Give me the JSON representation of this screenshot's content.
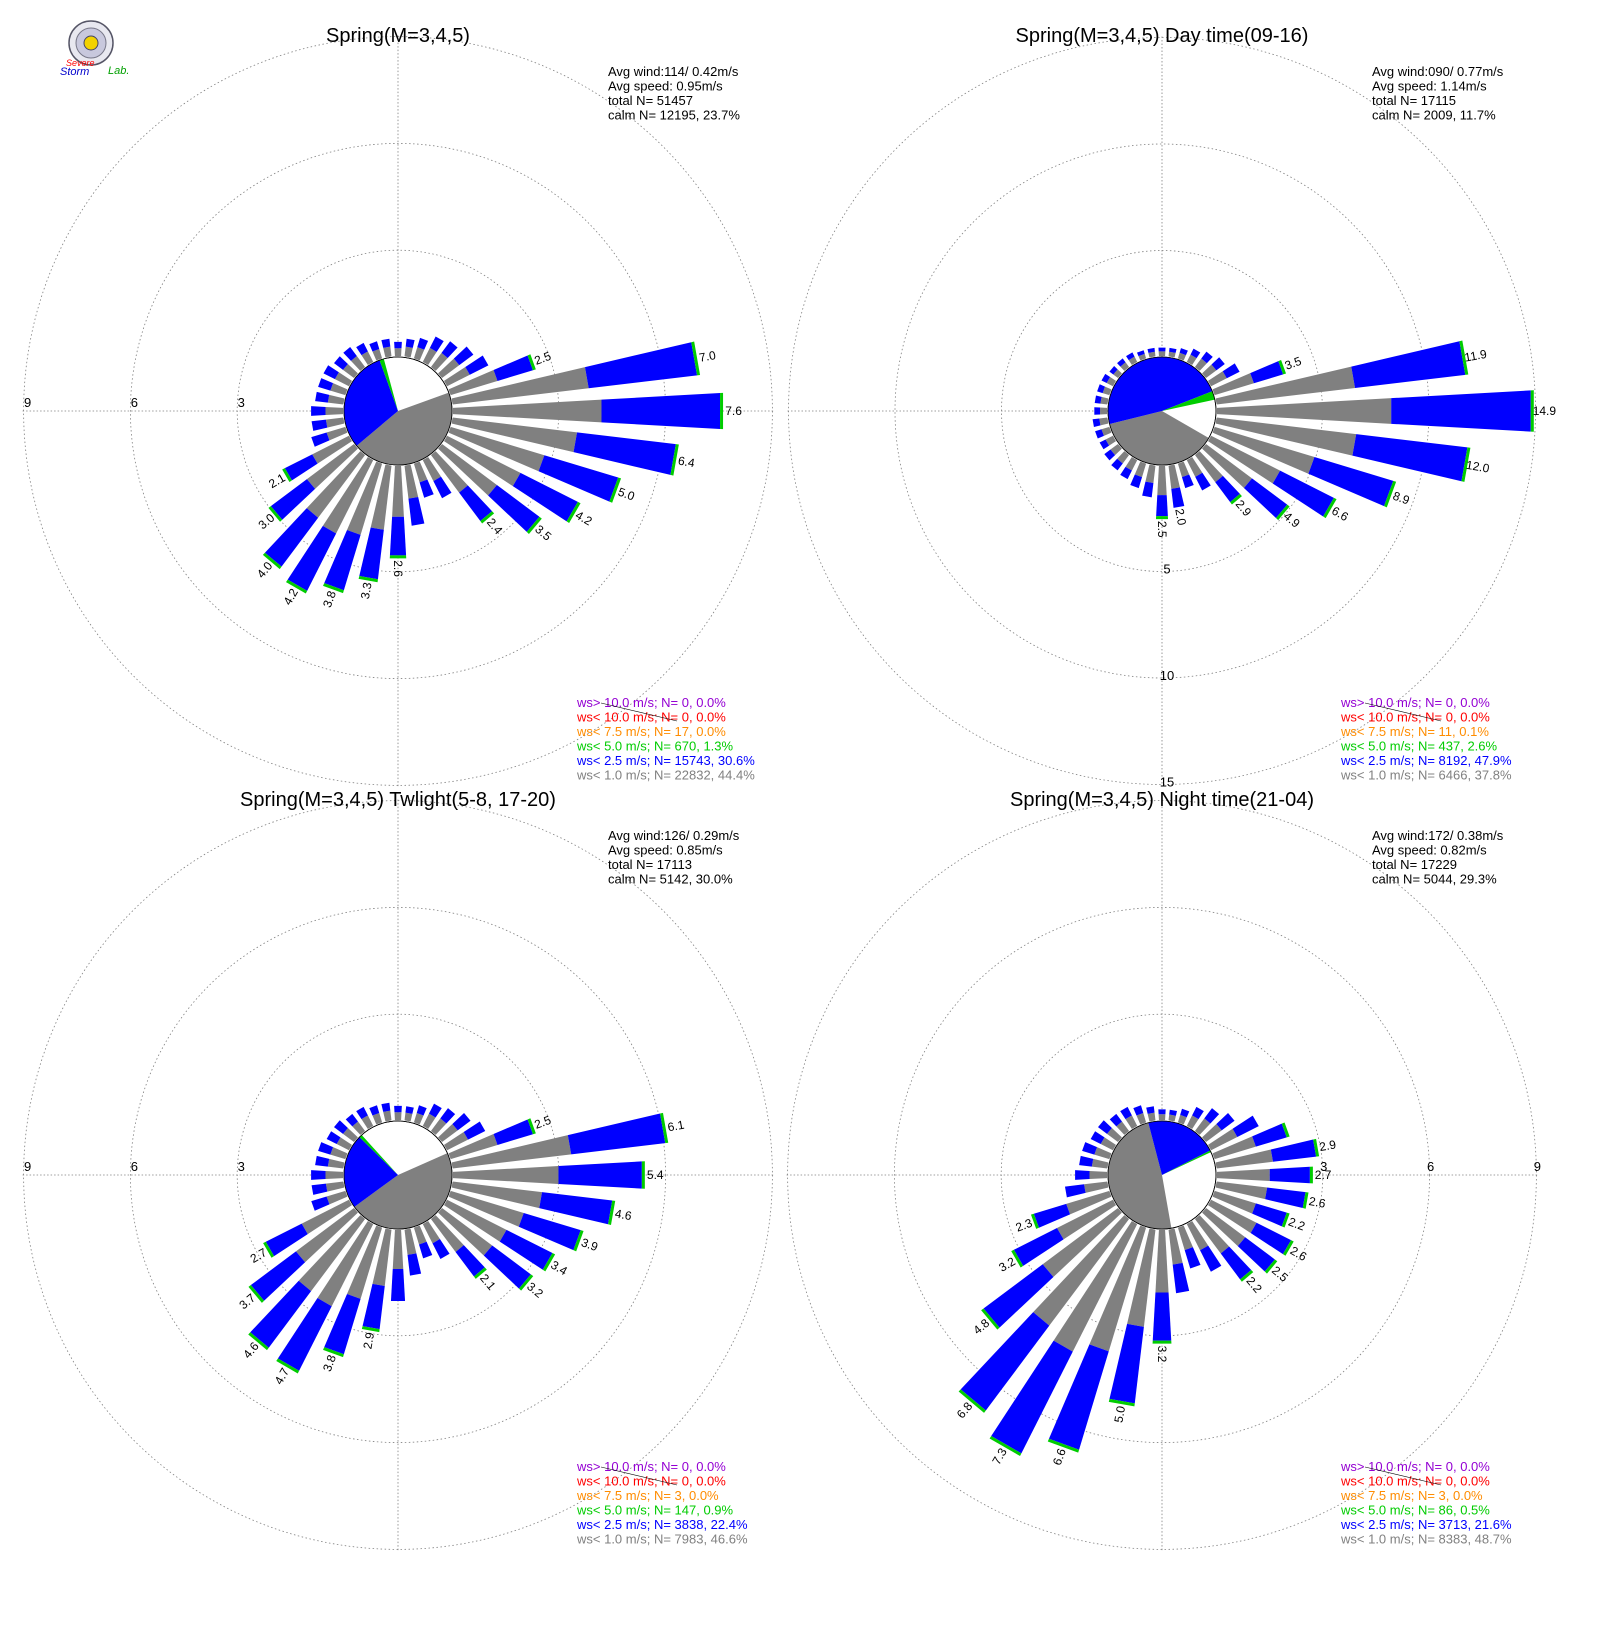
{
  "logo": {
    "text1": "Severe",
    "text2": "Storm",
    "text3": "Lab."
  },
  "colors": {
    "calm": "#808080",
    "ws1": "#808080",
    "ws2": "#0000ff",
    "ws3": "#00cc00",
    "ws4": "#ff8c00",
    "ws5": "#ff0000",
    "ws6": "#9400d3",
    "text": "#000000",
    "grid": "#808080"
  },
  "chart_data": [
    {
      "type": "wind-rose",
      "title": "Spring(M=3,4,5)",
      "stats": [
        "Avg wind:114/ 0.42m/s",
        "Avg speed: 0.95m/s",
        "total N=      51457",
        "calm N=  12195,  23.7%"
      ],
      "ring_labels": [
        "3",
        "6",
        "9"
      ],
      "sectors": 36,
      "totals": [
        0.5,
        0.6,
        0.8,
        0.9,
        1.1,
        1.3,
        2.5,
        7.0,
        7.6,
        6.4,
        5.0,
        4.2,
        3.5,
        2.4,
        1.2,
        1.0,
        1.7,
        2.6,
        3.3,
        3.8,
        4.2,
        4.0,
        3.0,
        2.1,
        1.0,
        0.9,
        0.9,
        0.8,
        0.8,
        0.8,
        0.7,
        0.7,
        0.6,
        0.5,
        0.5,
        0.4
      ],
      "value_labels": [
        null,
        null,
        null,
        null,
        null,
        null,
        "2.5",
        "7.0",
        "7.6",
        "6.4",
        "5.0",
        "4.2",
        "3.5",
        "2.4",
        null,
        null,
        null,
        "2.6",
        "3.3",
        "3.8",
        "4.2",
        "4.0",
        "3.0",
        "2.1",
        null,
        null,
        null,
        null,
        null,
        null,
        null,
        null,
        null,
        null,
        null,
        null
      ],
      "legend": [
        {
          "label": "ws> 10.0 m/s; N=     0,  0.0%",
          "color": "#9400d3"
        },
        {
          "label": "ws< 10.0 m/s; N=     0,  0.0%",
          "color": "#ff0000"
        },
        {
          "label": "ws<  7.5 m/s; N=    17,  0.0%",
          "color": "#ff8c00"
        },
        {
          "label": "ws<  5.0 m/s; N=   670,  1.3%",
          "color": "#00cc00"
        },
        {
          "label": "ws<  2.5 m/s; N= 15743, 30.6%",
          "color": "#0000ff"
        },
        {
          "label": "ws<  1.0 m/s; N= 22832, 44.4%",
          "color": "#808080"
        }
      ],
      "calm_split": {
        "gray_pct": 44.4,
        "blue_pct": 30.6,
        "green_pct": 1.3
      }
    },
    {
      "type": "wind-rose",
      "title": "Spring(M=3,4,5) Day time(09-16)",
      "stats": [
        "Avg wind:090/ 0.77m/s",
        "Avg speed: 1.14m/s",
        "total N=      17115",
        "calm N=   2009,  11.7%"
      ],
      "ring_labels": [
        "5",
        "10",
        "15"
      ],
      "sectors": 36,
      "totals": [
        0.4,
        0.5,
        0.7,
        0.9,
        1.1,
        1.5,
        3.5,
        11.9,
        14.9,
        12.0,
        8.9,
        6.6,
        4.9,
        2.9,
        1.6,
        1.2,
        2.0,
        2.5,
        1.5,
        1.2,
        1.0,
        0.9,
        0.8,
        0.7,
        0.7,
        0.7,
        0.6,
        0.6,
        0.6,
        0.6,
        0.5,
        0.5,
        0.5,
        0.4,
        0.4,
        0.4
      ],
      "value_labels": [
        null,
        null,
        null,
        null,
        null,
        null,
        "3.5",
        "11.9",
        "14.9",
        "12.0",
        "8.9",
        "6.6",
        "4.9",
        "2.9",
        null,
        null,
        "2.0",
        "2.5",
        null,
        null,
        null,
        null,
        null,
        null,
        null,
        null,
        null,
        null,
        null,
        null,
        null,
        null,
        null,
        null,
        null,
        null
      ],
      "legend": [
        {
          "label": "ws> 10.0 m/s; N=     0,  0.0%",
          "color": "#9400d3"
        },
        {
          "label": "ws< 10.0 m/s; N=     0,  0.0%",
          "color": "#ff0000"
        },
        {
          "label": "ws<  7.5 m/s; N=    11,  0.1%",
          "color": "#ff8c00"
        },
        {
          "label": "ws<  5.0 m/s; N=   437,  2.6%",
          "color": "#00cc00"
        },
        {
          "label": "ws<  2.5 m/s; N=  8192, 47.9%",
          "color": "#0000ff"
        },
        {
          "label": "ws<  1.0 m/s; N=  6466, 37.8%",
          "color": "#808080"
        }
      ],
      "calm_split": {
        "gray_pct": 37.8,
        "blue_pct": 47.9,
        "green_pct": 2.6
      }
    },
    {
      "type": "wind-rose",
      "title": "Spring(M=3,4,5) Twlight(5-8, 17-20)",
      "stats": [
        "Avg wind:126/ 0.29m/s",
        "Avg speed: 0.85m/s",
        "total N=      17113",
        "calm N=   5142,  30.0%"
      ],
      "ring_labels": [
        "3",
        "6",
        "9"
      ],
      "sectors": 36,
      "totals": [
        0.4,
        0.5,
        0.7,
        0.8,
        1.0,
        1.2,
        2.5,
        6.1,
        5.4,
        4.6,
        3.9,
        3.4,
        3.2,
        2.1,
        1.1,
        0.9,
        1.3,
        2.0,
        2.9,
        3.8,
        4.7,
        4.6,
        3.7,
        2.7,
        1.0,
        0.9,
        0.9,
        0.8,
        0.8,
        0.7,
        0.7,
        0.6,
        0.6,
        0.5,
        0.5,
        0.4
      ],
      "value_labels": [
        null,
        null,
        null,
        null,
        null,
        null,
        "2.5",
        "6.1",
        "5.4",
        "4.6",
        "3.9",
        "3.4",
        "3.2",
        "2.1",
        null,
        null,
        null,
        null,
        "2.9",
        "3.8",
        "4.7",
        "4.6",
        "3.7",
        "2.7",
        null,
        null,
        null,
        null,
        null,
        null,
        null,
        null,
        null,
        null,
        null,
        null
      ],
      "legend": [
        {
          "label": "ws> 10.0 m/s; N=     0,  0.0%",
          "color": "#9400d3"
        },
        {
          "label": "ws< 10.0 m/s; N=     0,  0.0%",
          "color": "#ff0000"
        },
        {
          "label": "ws<  7.5 m/s; N=     3,  0.0%",
          "color": "#ff8c00"
        },
        {
          "label": "ws<  5.0 m/s; N=   147,  0.9%",
          "color": "#00cc00"
        },
        {
          "label": "ws<  2.5 m/s; N=  3838, 22.4%",
          "color": "#0000ff"
        },
        {
          "label": "ws<  1.0 m/s; N=  7983, 46.6%",
          "color": "#808080"
        }
      ],
      "calm_split": {
        "gray_pct": 46.6,
        "blue_pct": 22.4,
        "green_pct": 0.9
      }
    },
    {
      "type": "wind-rose",
      "title": "Spring(M=3,4,5) Night time(21-04)",
      "stats": [
        "Avg wind:172/ 0.38m/s",
        "Avg speed: 0.82m/s",
        "total N=      17229",
        "calm N=   5044,  29.3%"
      ],
      "ring_labels": [
        "3",
        "6",
        "9"
      ],
      "sectors": 36,
      "totals": [
        0.3,
        0.4,
        0.6,
        0.8,
        1.0,
        1.5,
        2.2,
        2.9,
        2.7,
        2.6,
        2.2,
        2.6,
        2.5,
        2.2,
        1.5,
        1.2,
        1.8,
        3.2,
        5.0,
        6.6,
        7.3,
        6.8,
        4.8,
        3.2,
        2.3,
        1.2,
        0.9,
        0.8,
        0.8,
        0.7,
        0.7,
        0.6,
        0.6,
        0.5,
        0.4,
        0.3
      ],
      "value_labels": [
        null,
        null,
        null,
        null,
        null,
        null,
        null,
        "2.9",
        "2.7",
        "2.6",
        "2.2",
        "2.6",
        "2.5",
        "2.2",
        null,
        null,
        null,
        "3.2",
        "5.0",
        "6.6",
        "7.3",
        "6.8",
        "4.8",
        "3.2",
        "2.3",
        null,
        null,
        null,
        null,
        null,
        null,
        null,
        null,
        null,
        null,
        null
      ],
      "legend": [
        {
          "label": "ws> 10.0 m/s; N=     0,  0.0%",
          "color": "#9400d3"
        },
        {
          "label": "ws< 10.0 m/s; N=     0,  0.0%",
          "color": "#ff0000"
        },
        {
          "label": "ws<  7.5 m/s; N=     3,  0.0%",
          "color": "#ff8c00"
        },
        {
          "label": "ws<  5.0 m/s; N=    86,  0.5%",
          "color": "#00cc00"
        },
        {
          "label": "ws<  2.5 m/s; N=  3713, 21.6%",
          "color": "#0000ff"
        },
        {
          "label": "ws<  1.0 m/s; N=  8383, 48.7%",
          "color": "#808080"
        }
      ],
      "calm_split": {
        "gray_pct": 48.7,
        "blue_pct": 21.6,
        "green_pct": 0.5
      }
    }
  ]
}
